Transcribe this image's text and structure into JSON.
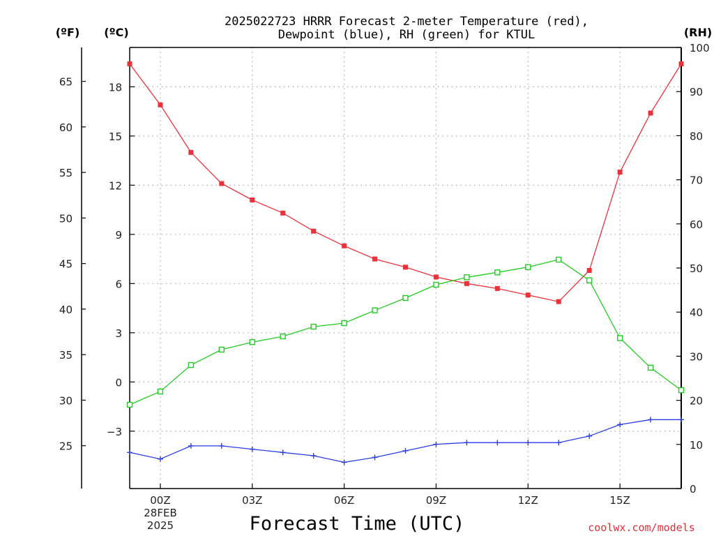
{
  "title": {
    "line1": "2025022723 HRRR Forecast 2-meter Temperature (red),",
    "line2": "Dewpoint (blue), RH (green) for KTUL"
  },
  "units": {
    "left_outer": "(ºF)",
    "left_inner": "(ºC)",
    "right": "(RH)"
  },
  "xlabel": "Forecast Time (UTC)",
  "credit": "coolwx.com/models",
  "date_label": {
    "line1": "28FEB",
    "line2": "2025"
  },
  "colors": {
    "temperature": "#e8323c",
    "dewpoint": "#2a3ee6",
    "rh": "#22cc22",
    "axis": "#000000",
    "grid": "#aaaaaa"
  },
  "chart_data": {
    "type": "line",
    "x": [
      -1,
      0,
      1,
      2,
      3,
      4,
      5,
      6,
      7,
      8,
      9,
      10,
      11,
      12,
      13,
      14,
      15,
      16,
      17
    ],
    "x_unit": "forecast hour relative to 00Z 28FEB2025",
    "x_tick_values": [
      0,
      3,
      6,
      9,
      12,
      15
    ],
    "x_tick_labels": [
      "00Z",
      "03Z",
      "06Z",
      "09Z",
      "12Z",
      "15Z"
    ],
    "xlim": [
      -1,
      17
    ],
    "celsius_axis": {
      "ylim": [
        -6.5,
        20.4
      ],
      "ticks": [
        -3,
        0,
        3,
        6,
        9,
        12,
        15,
        18
      ],
      "tick_labels": [
        "−3",
        "0",
        "3",
        "6",
        "9",
        "12",
        "15",
        "18"
      ]
    },
    "fahrenheit_axis": {
      "ticks": [
        25,
        30,
        35,
        40,
        45,
        50,
        55,
        60,
        65
      ],
      "tick_labels": [
        "25",
        "30",
        "35",
        "40",
        "45",
        "50",
        "55",
        "60",
        "65"
      ]
    },
    "rh_axis": {
      "ylim": [
        0,
        100
      ],
      "ticks": [
        0,
        10,
        20,
        30,
        40,
        50,
        60,
        70,
        80,
        90,
        100
      ],
      "tick_labels": [
        "0",
        "10",
        "20",
        "30",
        "40",
        "50",
        "60",
        "70",
        "80",
        "90",
        "100"
      ]
    },
    "series": [
      {
        "name": "Temperature",
        "axis": "celsius",
        "marker": "filled-square",
        "values": [
          19.4,
          16.9,
          14.0,
          12.1,
          11.1,
          10.3,
          9.2,
          8.3,
          7.5,
          7.0,
          6.4,
          6.0,
          5.7,
          5.3,
          4.9,
          6.8,
          12.8,
          16.4,
          19.4
        ]
      },
      {
        "name": "Dewpoint",
        "axis": "celsius",
        "marker": "plus",
        "values": [
          -4.3,
          -4.7,
          -3.9,
          -3.9,
          -4.1,
          -4.3,
          -4.5,
          -4.9,
          -4.6,
          -4.2,
          -3.8,
          -3.7,
          -3.7,
          -3.7,
          -3.7,
          -3.3,
          -2.6,
          -2.3,
          -2.3
        ]
      },
      {
        "name": "RH",
        "axis": "rh",
        "marker": "open-square",
        "values": [
          19,
          22,
          28,
          31.5,
          33.2,
          34.5,
          36.7,
          37.5,
          40.4,
          43.2,
          46.2,
          47.9,
          49.0,
          50.2,
          51.9,
          47.2,
          34.1,
          27.4,
          22.3
        ]
      }
    ]
  }
}
